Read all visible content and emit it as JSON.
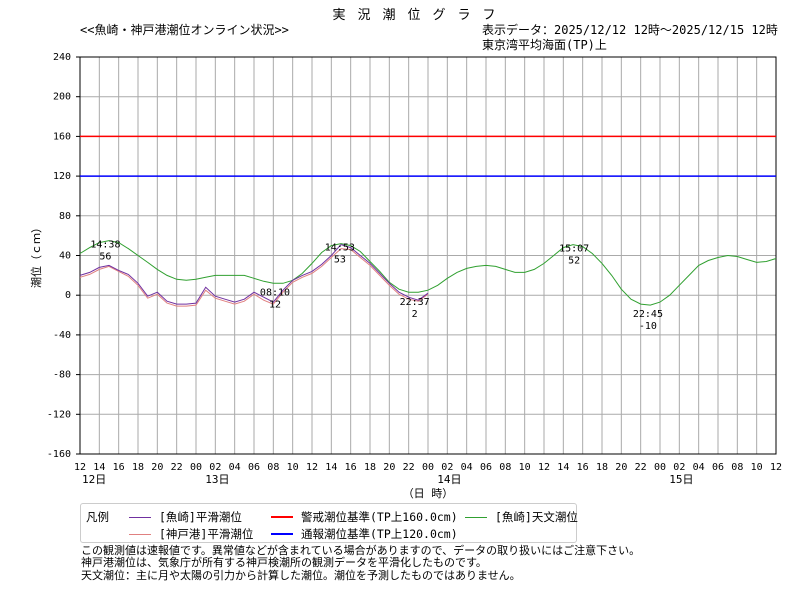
{
  "header": {
    "title": "実況潮位グラフ",
    "subtitle": "<<魚崎・神戸港潮位オンライン状況>>",
    "range": "表示データ：2025/12/12 12時～2025/12/15 12時",
    "datum": "東京湾平均海面(TP)上"
  },
  "chart_data": {
    "type": "line",
    "ylabel": "潮位（ｃｍ）",
    "xlabel": "（日 時）",
    "ylim": [
      -160,
      240
    ],
    "yticks": [
      240,
      200,
      160,
      120,
      80,
      40,
      0,
      -40,
      -80,
      -120,
      -160
    ],
    "x_hours_start": "2025/12/12 12時",
    "xtick_labels": [
      "12",
      "14",
      "16",
      "18",
      "20",
      "22",
      "00",
      "02",
      "04",
      "06",
      "08",
      "10",
      "12",
      "14",
      "16",
      "18",
      "20",
      "22",
      "00",
      "02",
      "04",
      "06",
      "08",
      "10",
      "12",
      "14",
      "16",
      "18",
      "20",
      "22",
      "00",
      "02",
      "04",
      "06",
      "08",
      "10",
      "12"
    ],
    "day_labels": [
      {
        "hour": 0,
        "label": "12日"
      },
      {
        "hour": 14,
        "label": "13日"
      },
      {
        "hour": 38,
        "label": "14日"
      },
      {
        "hour": 62,
        "label": "15日"
      }
    ],
    "grid": true,
    "colors": {
      "uozaki_obs": "#7030a0",
      "kobe_obs": "#e08080",
      "warning": "#ff0000",
      "notice": "#0000ff",
      "astro": "#30a030"
    },
    "series": [
      {
        "name": "[魚崎]平滑潮位",
        "x_step_hours": 1,
        "values": [
          20,
          23,
          28,
          30,
          25,
          21,
          12,
          -1,
          3,
          -6,
          -9,
          -9,
          -8,
          8,
          -1,
          -4,
          -7,
          -4,
          3,
          -2,
          -7,
          5,
          15,
          20,
          24,
          31,
          40,
          51,
          48,
          40,
          32,
          22,
          12,
          3,
          -2,
          -5,
          2
        ]
      },
      {
        "name": "[神戸港]平滑潮位",
        "x_step_hours": 1,
        "values": [
          18,
          21,
          26,
          29,
          24,
          19,
          10,
          -3,
          1,
          -8,
          -11,
          -11,
          -10,
          5,
          -3,
          -6,
          -9,
          -6,
          1,
          -5,
          -9,
          3,
          13,
          18,
          22,
          29,
          38,
          47,
          46,
          38,
          30,
          20,
          10,
          1,
          -4,
          -6,
          1
        ]
      },
      {
        "name": "警戒潮位基準(TP上160.0cm)",
        "constant": 160
      },
      {
        "name": "通報潮位基準(TP上120.0cm)",
        "constant": 120
      },
      {
        "name": "[魚崎]天文潮位",
        "x_step_hours": 1,
        "values": [
          42,
          48,
          53,
          55,
          53,
          47,
          40,
          33,
          26,
          20,
          16,
          15,
          16,
          18,
          20,
          20,
          20,
          20,
          17,
          14,
          12,
          12,
          15,
          22,
          32,
          43,
          50,
          52,
          50,
          44,
          34,
          24,
          13,
          6,
          3,
          3,
          5,
          10,
          17,
          23,
          27,
          29,
          30,
          29,
          26,
          23,
          23,
          26,
          32,
          40,
          48,
          51,
          49,
          42,
          32,
          20,
          6,
          -4,
          -9,
          -10,
          -7,
          0,
          10,
          20,
          30,
          35,
          38,
          40,
          39,
          36,
          33,
          34,
          37
        ]
      }
    ],
    "annotations": [
      {
        "time": "14:38",
        "value": "56",
        "hour": 2.63,
        "level": 56
      },
      {
        "time": "08:10",
        "value": "12",
        "hour": 20.17,
        "level": 12
      },
      {
        "time": "14:53",
        "value": "53",
        "hour": 26.88,
        "level": 53
      },
      {
        "time": "22:37",
        "value": "2",
        "hour": 34.62,
        "level": 2
      },
      {
        "time": "15:07",
        "value": "52",
        "hour": 51.12,
        "level": 52
      },
      {
        "time": "22:45",
        "value": "-10",
        "hour": 58.75,
        "level": -10
      }
    ]
  },
  "legend": {
    "title": "凡例",
    "items": [
      "[魚崎]平滑潮位",
      "[神戸港]平滑潮位",
      "警戒潮位基準(TP上160.0cm)",
      "通報潮位基準(TP上120.0cm)",
      "[魚崎]天文潮位"
    ]
  },
  "notes": [
    "この観測値は速報値です。異常値などが含まれている場合がありますので、データの取り扱いにはご注意下さい。",
    "神戸港潮位は、気象庁が所有する神戸検潮所の観測データを平滑化したものです。",
    "天文潮位：主に月や太陽の引力から計算した潮位。潮位を予測したものではありません。"
  ]
}
